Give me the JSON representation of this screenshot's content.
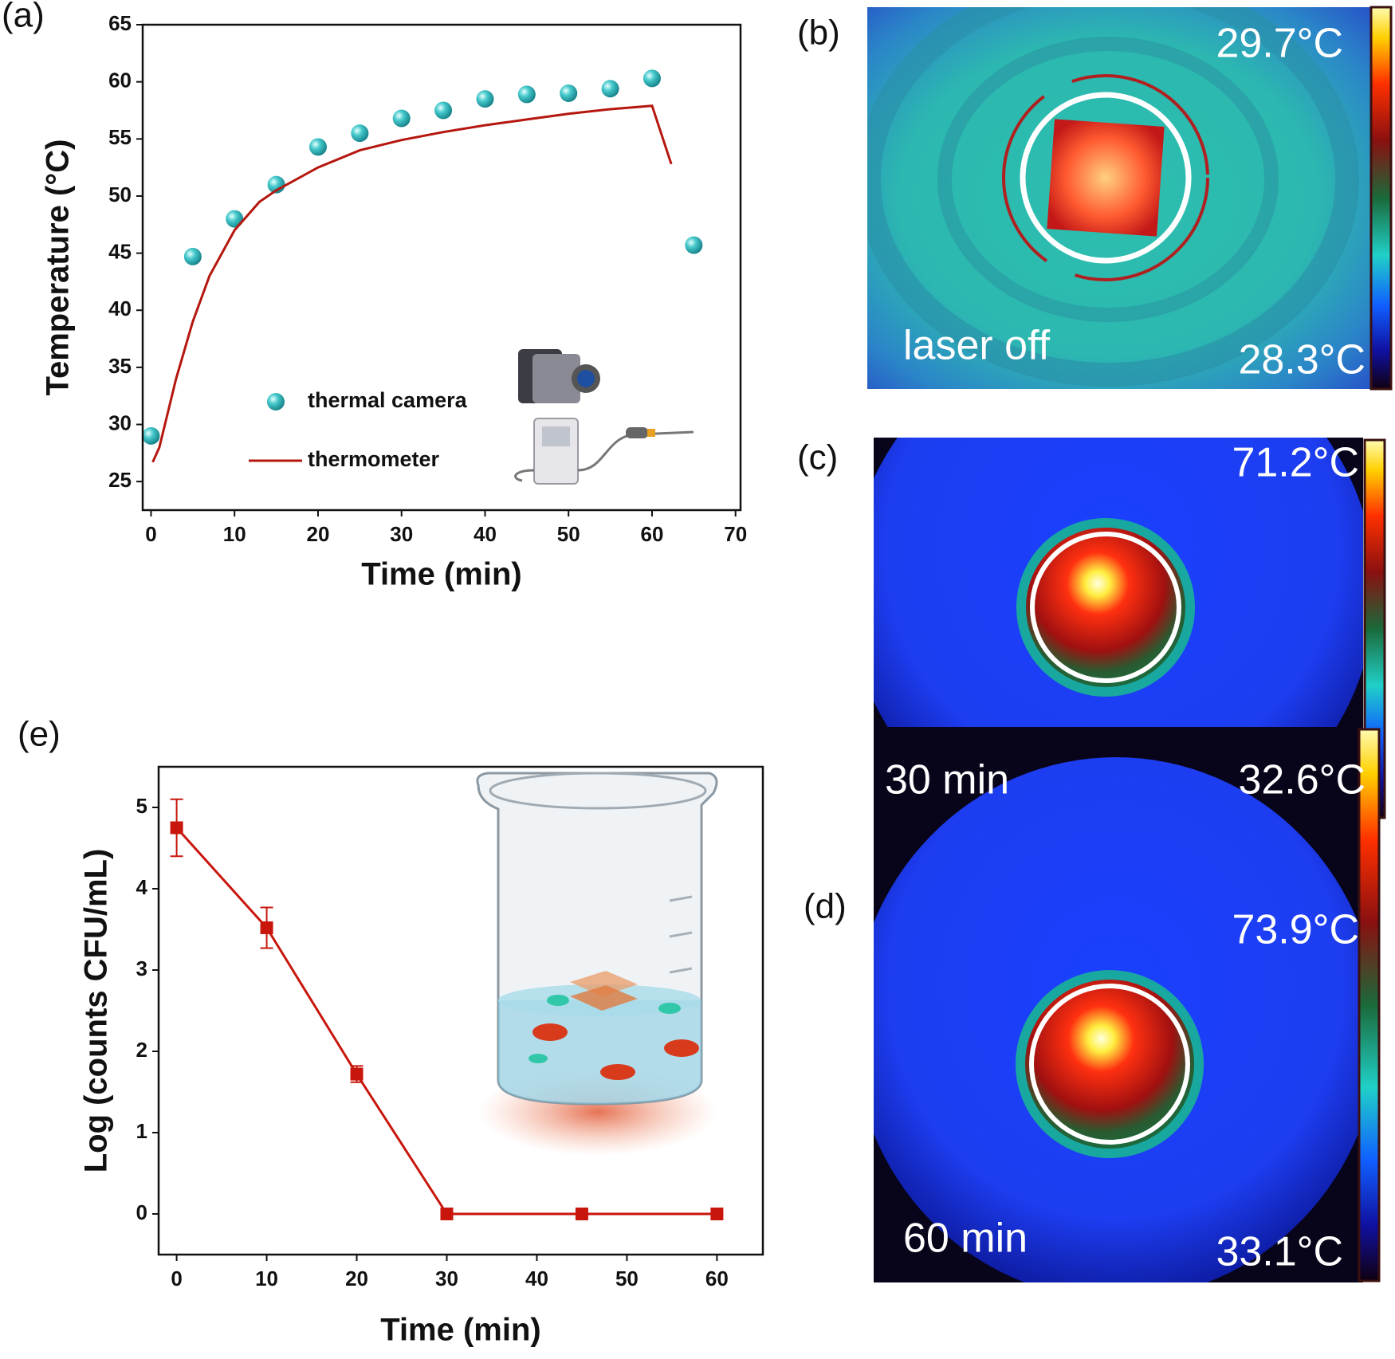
{
  "chart_data": [
    {
      "type": "combo",
      "panel_label": "(a)",
      "xlabel": "Time  (min)",
      "ylabel": "Temperature (°C)",
      "xlim": [
        -1,
        70.6
      ],
      "ylim": [
        22.5,
        65
      ],
      "xticks": [
        0,
        10,
        20,
        30,
        40,
        50,
        60,
        70
      ],
      "yticks": [
        25,
        30,
        35,
        40,
        45,
        50,
        55,
        60,
        65
      ],
      "legend": "lower center",
      "series": [
        {
          "name": "thermal camera",
          "type": "scatter",
          "color": "#35bfc4",
          "x": [
            0,
            5,
            10,
            15,
            20,
            25,
            30,
            35,
            40,
            45,
            50,
            55,
            60,
            65
          ],
          "values": [
            29,
            44.7,
            48,
            51,
            54.3,
            55.5,
            56.8,
            57.5,
            58.5,
            58.9,
            59,
            59.4,
            60.3,
            45.7
          ]
        },
        {
          "name": "thermometer",
          "type": "line",
          "color": "#b5170f",
          "x": [
            0.2,
            1,
            2,
            3,
            5,
            7,
            10,
            13,
            15,
            20,
            25,
            30,
            35,
            40,
            45,
            50,
            55,
            60,
            62.3
          ],
          "values": [
            26.7,
            28,
            31,
            34,
            39,
            43,
            47,
            49.5,
            50.5,
            52.5,
            54,
            54.9,
            55.6,
            56.2,
            56.7,
            57.2,
            57.6,
            57.9,
            52.8
          ]
        }
      ]
    },
    {
      "type": "line",
      "panel_label": "(e)",
      "xlabel": "Time (min)",
      "ylabel": "Log (counts CFU/mL)",
      "xlim": [
        -2,
        65.1
      ],
      "ylim": [
        -0.5,
        5.5
      ],
      "xticks": [
        0,
        10,
        20,
        30,
        40,
        50,
        60
      ],
      "yticks": [
        0,
        1,
        2,
        3,
        4,
        5
      ],
      "marker": "square",
      "color": "#c8160c",
      "x": [
        0,
        10,
        20,
        30,
        45,
        60
      ],
      "values": [
        4.75,
        3.52,
        1.72,
        0,
        0,
        0
      ],
      "errors": [
        0.35,
        0.25,
        0.1,
        0,
        0,
        0
      ]
    }
  ],
  "thermal_images": [
    {
      "panel": "(b)",
      "max": "29.7°C",
      "min": "28.3°C",
      "label": "laser off"
    },
    {
      "panel": "(c)",
      "max": "71.2°C",
      "min": "32.6°C",
      "label": "30  min"
    },
    {
      "panel": "(d)",
      "max": "73.9°C",
      "min": "33.1°C",
      "label": "60 min"
    }
  ]
}
